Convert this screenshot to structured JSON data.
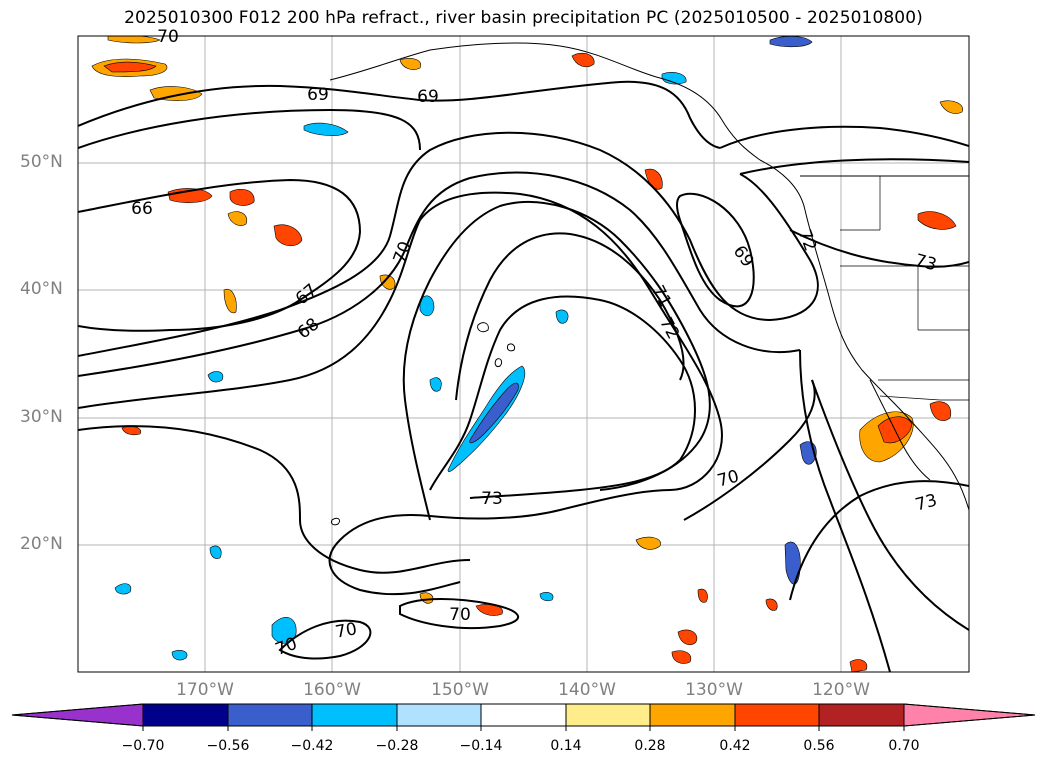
{
  "title": "2025010300 F012 200 hPa refract., river basin precipitation PC (2025010500 - 2025010800)",
  "map": {
    "projection": "plate-carree",
    "lon_range": [
      -180,
      -110
    ],
    "lat_range": [
      10,
      60
    ],
    "gridlines": true,
    "lat_labels": [
      "50°N",
      "40°N",
      "30°N",
      "20°N"
    ],
    "lon_labels": [
      "170°W",
      "160°W",
      "150°W",
      "140°W",
      "130°W",
      "120°W"
    ],
    "contour_labels": [
      "70",
      "69",
      "69",
      "66",
      "70",
      "67",
      "68",
      "69",
      "72",
      "73",
      "71",
      "72",
      "70",
      "73",
      "73",
      "70",
      "70",
      "70"
    ]
  },
  "colorbar": {
    "orientation": "horizontal",
    "extend": "both",
    "ticks": [
      "−0.70",
      "−0.56",
      "−0.42",
      "−0.28",
      "−0.14",
      "0.14",
      "0.28",
      "0.42",
      "0.56",
      "0.70"
    ],
    "colors": [
      "#9932cc",
      "#00008b",
      "#3a5fcd",
      "#00bfff",
      "#b0e2ff",
      "#ffffff",
      "#ffec8b",
      "#ffa500",
      "#ff4500",
      "#b22222",
      "#ff82ab"
    ]
  }
}
